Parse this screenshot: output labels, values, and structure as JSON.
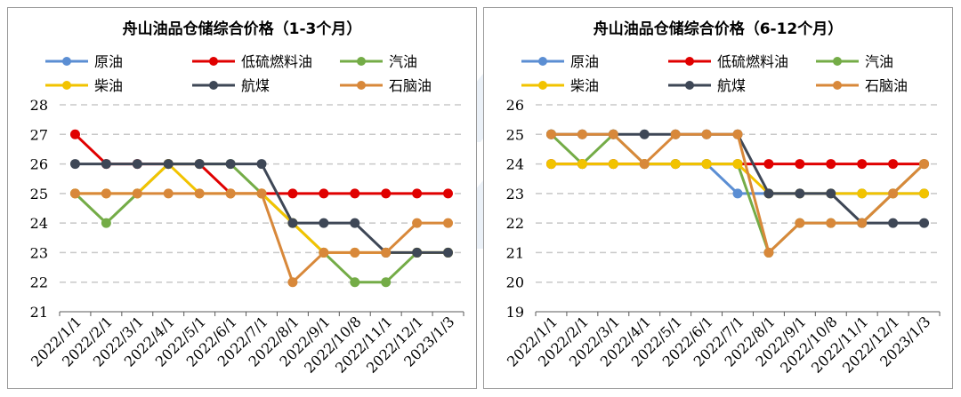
{
  "chart_data": [
    {
      "type": "line",
      "title": "舟山油品仓储综合价格（1-3个月）",
      "xlabel": "",
      "ylabel": "",
      "ylim": [
        21,
        28
      ],
      "yticks": [
        21,
        22,
        23,
        24,
        25,
        26,
        27,
        28
      ],
      "grid": true,
      "legend_position": "top",
      "categories": [
        "2022/1/1",
        "2022/2/1",
        "2022/3/1",
        "2022/4/1",
        "2022/5/1",
        "2022/6/1",
        "2022/7/1",
        "2022/8/1",
        "2022/9/1",
        "2022/10/8",
        "2022/11/1",
        "2022/12/1",
        "2023/1/3"
      ],
      "series": [
        {
          "name": "原油",
          "color": "#5b8ed3",
          "values": [
            null,
            null,
            null,
            null,
            null,
            null,
            null,
            null,
            null,
            null,
            null,
            null,
            null
          ]
        },
        {
          "name": "低硫燃料油",
          "color": "#e00000",
          "values": [
            27,
            26,
            26,
            26,
            26,
            25,
            25,
            25,
            25,
            25,
            25,
            25,
            25
          ]
        },
        {
          "name": "汽油",
          "color": "#74ac47",
          "values": [
            25,
            24,
            25,
            26,
            26,
            26,
            25,
            24,
            23,
            22,
            22,
            23,
            23
          ]
        },
        {
          "name": "柴油",
          "color": "#f2c300",
          "values": [
            25,
            25,
            25,
            26,
            25,
            25,
            25,
            24,
            23,
            23,
            23,
            23,
            23
          ]
        },
        {
          "name": "航煤",
          "color": "#3e4756",
          "values": [
            26,
            26,
            26,
            26,
            26,
            26,
            26,
            24,
            24,
            24,
            23,
            23,
            23
          ]
        },
        {
          "name": "石脑油",
          "color": "#d8883a",
          "values": [
            25,
            25,
            25,
            25,
            25,
            25,
            25,
            22,
            23,
            23,
            23,
            24,
            24
          ]
        }
      ]
    },
    {
      "type": "line",
      "title": "舟山油品仓储综合价格（6-12个月）",
      "xlabel": "",
      "ylabel": "",
      "ylim": [
        19,
        26
      ],
      "yticks": [
        19,
        20,
        21,
        22,
        23,
        24,
        25,
        26
      ],
      "grid": true,
      "legend_position": "top",
      "categories": [
        "2022/1/1",
        "2022/2/1",
        "2022/3/1",
        "2022/4/1",
        "2022/5/1",
        "2022/6/1",
        "2022/7/1",
        "2022/8/1",
        "2022/9/1",
        "2022/10/8",
        "2022/11/1",
        "2022/12/1",
        "2023/1/3"
      ],
      "series": [
        {
          "name": "原油",
          "color": "#5b8ed3",
          "values": [
            24,
            24,
            24,
            24,
            24,
            24,
            23,
            23,
            23,
            23,
            23,
            23,
            23
          ]
        },
        {
          "name": "低硫燃料油",
          "color": "#e00000",
          "values": [
            24,
            24,
            24,
            24,
            24,
            24,
            24,
            24,
            24,
            24,
            24,
            24,
            24
          ]
        },
        {
          "name": "汽油",
          "color": "#74ac47",
          "values": [
            25,
            24,
            25,
            24,
            24,
            24,
            24,
            21,
            22,
            22,
            22,
            23,
            24
          ]
        },
        {
          "name": "柴油",
          "color": "#f2c300",
          "values": [
            24,
            24,
            24,
            24,
            24,
            24,
            24,
            23,
            23,
            23,
            23,
            23,
            23
          ]
        },
        {
          "name": "航煤",
          "color": "#3e4756",
          "values": [
            25,
            25,
            25,
            25,
            25,
            25,
            25,
            23,
            23,
            23,
            22,
            22,
            22
          ]
        },
        {
          "name": "石脑油",
          "color": "#d8883a",
          "values": [
            25,
            25,
            25,
            24,
            25,
            25,
            25,
            21,
            22,
            22,
            22,
            23,
            24
          ]
        }
      ]
    }
  ]
}
